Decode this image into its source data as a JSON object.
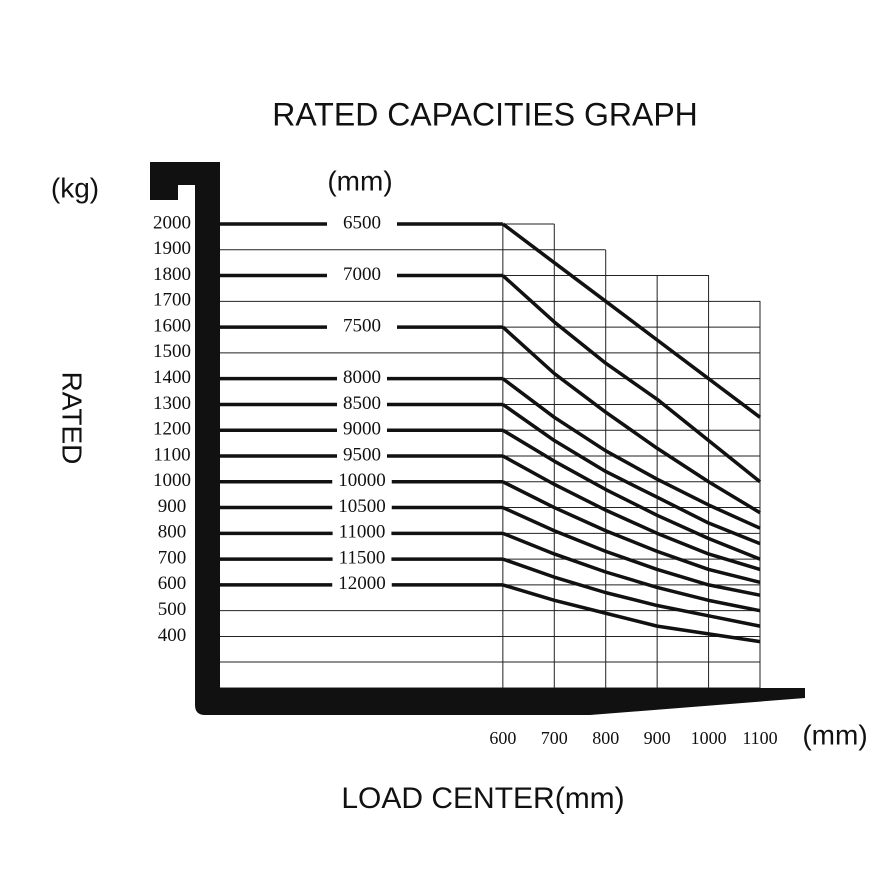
{
  "chart_data": {
    "type": "line",
    "title": "RATED CAPACITIES GRAPH",
    "y_unit": "(kg)",
    "series_unit": "(mm)",
    "y_label": "RATED",
    "x_label": "LOAD CENTER(mm)",
    "x_unit": "(mm)",
    "x": [
      600,
      700,
      800,
      900,
      1000,
      1100
    ],
    "xlim": [
      50,
      1100
    ],
    "xticks": [
      600,
      700,
      800,
      900,
      1000,
      1100
    ],
    "ylim": [
      200,
      2000
    ],
    "yticks": [
      2000,
      1900,
      1800,
      1700,
      1600,
      1500,
      1400,
      1300,
      1200,
      1100,
      1000,
      900,
      800,
      700,
      600,
      500,
      400
    ],
    "grid": true,
    "series": [
      {
        "name": "6500",
        "color": "#111111",
        "values": [
          2000,
          1850,
          1700,
          1550,
          1400,
          1250
        ]
      },
      {
        "name": "7000",
        "color": "#111111",
        "values": [
          1800,
          1620,
          1460,
          1320,
          1160,
          1000
        ]
      },
      {
        "name": "7500",
        "color": "#111111",
        "values": [
          1600,
          1420,
          1270,
          1130,
          1000,
          880
        ]
      },
      {
        "name": "8000",
        "color": "#111111",
        "values": [
          1400,
          1250,
          1120,
          1010,
          910,
          820
        ]
      },
      {
        "name": "8500",
        "color": "#111111",
        "values": [
          1300,
          1160,
          1040,
          940,
          840,
          760
        ]
      },
      {
        "name": "9000",
        "color": "#111111",
        "values": [
          1200,
          1080,
          970,
          870,
          780,
          700
        ]
      },
      {
        "name": "9500",
        "color": "#111111",
        "values": [
          1100,
          990,
          890,
          800,
          720,
          660
        ]
      },
      {
        "name": "10000",
        "color": "#111111",
        "values": [
          1000,
          900,
          810,
          730,
          660,
          610
        ]
      },
      {
        "name": "10500",
        "color": "#111111",
        "values": [
          900,
          810,
          730,
          660,
          600,
          560
        ]
      },
      {
        "name": "11000",
        "color": "#111111",
        "values": [
          800,
          720,
          650,
          590,
          540,
          500
        ]
      },
      {
        "name": "11500",
        "color": "#111111",
        "values": [
          700,
          630,
          570,
          520,
          480,
          440
        ]
      },
      {
        "name": "12000",
        "color": "#111111",
        "values": [
          600,
          540,
          490,
          440,
          410,
          380
        ]
      }
    ]
  }
}
